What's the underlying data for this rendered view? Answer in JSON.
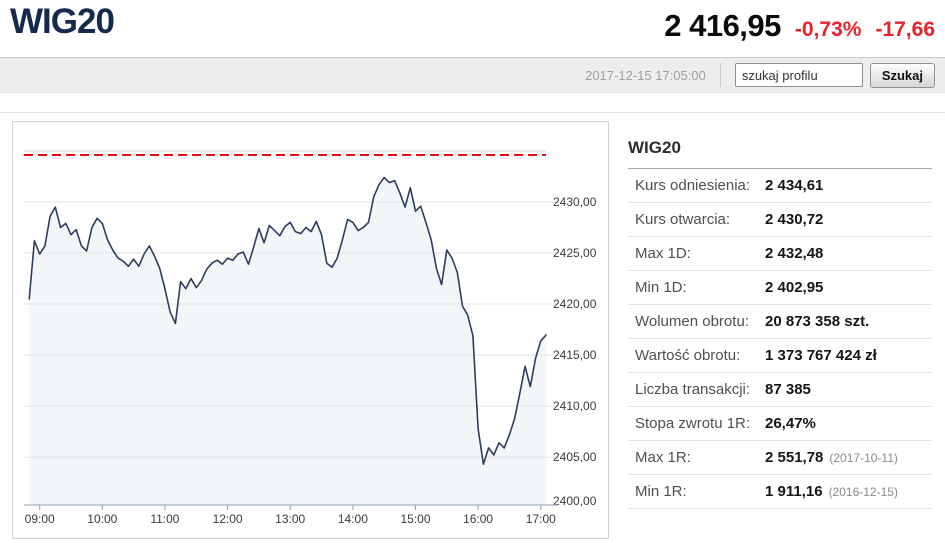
{
  "header": {
    "title": "WIG20",
    "price": "2 416,95",
    "change_pct": "-0,73%",
    "change_abs": "-17,66",
    "change_color": "#e8222a",
    "title_color": "#16284e"
  },
  "toolbar": {
    "timestamp": "2017-12-15 17:05:00",
    "search_placeholder": "szukaj profilu",
    "search_button": "Szukaj"
  },
  "panel": {
    "title": "WIG20",
    "rows": [
      {
        "label": "Kurs odniesienia:",
        "value": "2 434,61",
        "note": ""
      },
      {
        "label": "Kurs otwarcia:",
        "value": "2 430,72",
        "note": ""
      },
      {
        "label": "Max 1D:",
        "value": "2 432,48",
        "note": ""
      },
      {
        "label": "Min 1D:",
        "value": "2 402,95",
        "note": ""
      },
      {
        "label": "Wolumen obrotu:",
        "value": "20 873 358 szt.",
        "note": ""
      },
      {
        "label": "Wartość obrotu:",
        "value": "1 373 767 424 zł",
        "note": ""
      },
      {
        "label": "Liczba transakcji:",
        "value": "87 385",
        "note": ""
      },
      {
        "label": "Stopa zwrotu 1R:",
        "value": "26,47%",
        "note": ""
      },
      {
        "label": "Max 1R:",
        "value": "2 551,78",
        "note": "(2017-10-11)"
      },
      {
        "label": "Min 1R:",
        "value": "1 911,16",
        "note": "(2016-12-15)"
      }
    ]
  },
  "chart_data": {
    "type": "area",
    "title": "WIG20 intraday",
    "xlabel": "",
    "ylabel": "",
    "x_ticks": [
      "09:00",
      "10:00",
      "11:00",
      "12:00",
      "13:00",
      "14:00",
      "15:00",
      "16:00",
      "17:00"
    ],
    "y_ticks": [
      "2430,00",
      "2425,00",
      "2420,00",
      "2415,00",
      "2410,00",
      "2405,00",
      "2400,00"
    ],
    "ylim": [
      2400,
      2435
    ],
    "x_range": [
      "08:45",
      "17:05"
    ],
    "grid": "horizontal",
    "legend": "none",
    "reference_line": {
      "value": 2434.61,
      "color": "#e80c0c",
      "style": "dashed"
    },
    "line_color": "#2e3d5e",
    "fill_color": "#f3f6f9",
    "axis_color": "#93a0b2",
    "tick_text_color": "#3a3a3a",
    "series": [
      {
        "name": "WIG20",
        "times": [
          "08:50",
          "08:55",
          "09:00",
          "09:05",
          "09:10",
          "09:15",
          "09:20",
          "09:25",
          "09:30",
          "09:35",
          "09:40",
          "09:45",
          "09:50",
          "09:55",
          "10:00",
          "10:05",
          "10:10",
          "10:15",
          "10:20",
          "10:25",
          "10:30",
          "10:35",
          "10:40",
          "10:45",
          "10:50",
          "10:55",
          "11:00",
          "11:05",
          "11:10",
          "11:15",
          "11:20",
          "11:25",
          "11:30",
          "11:35",
          "11:40",
          "11:45",
          "11:50",
          "11:55",
          "12:00",
          "12:05",
          "12:10",
          "12:15",
          "12:20",
          "12:25",
          "12:30",
          "12:35",
          "12:40",
          "12:45",
          "12:50",
          "12:55",
          "13:00",
          "13:05",
          "13:10",
          "13:15",
          "13:20",
          "13:25",
          "13:30",
          "13:35",
          "13:40",
          "13:45",
          "13:50",
          "13:55",
          "14:00",
          "14:05",
          "14:10",
          "14:15",
          "14:20",
          "14:25",
          "14:30",
          "14:35",
          "14:40",
          "14:45",
          "14:50",
          "14:55",
          "15:00",
          "15:05",
          "15:10",
          "15:15",
          "15:20",
          "15:25",
          "15:30",
          "15:35",
          "15:40",
          "15:45",
          "15:50",
          "15:55",
          "16:00",
          "16:05",
          "16:10",
          "16:15",
          "16:20",
          "16:25",
          "16:30",
          "16:35",
          "16:40",
          "16:45",
          "16:50",
          "16:55",
          "17:00",
          "17:05"
        ],
        "values": [
          2420.5,
          2426.2,
          2424.9,
          2425.7,
          2428.6,
          2429.5,
          2427.5,
          2427.9,
          2426.8,
          2427.3,
          2425.7,
          2425.2,
          2427.5,
          2428.4,
          2427.9,
          2426.3,
          2425.3,
          2424.5,
          2424.2,
          2423.7,
          2424.4,
          2423.7,
          2424.9,
          2425.7,
          2424.7,
          2423.5,
          2421.5,
          2419.2,
          2418.1,
          2422.2,
          2421.5,
          2422.5,
          2421.6,
          2422.3,
          2423.4,
          2424.0,
          2424.3,
          2423.9,
          2424.5,
          2424.3,
          2424.9,
          2425.1,
          2423.9,
          2425.6,
          2427.4,
          2426.0,
          2427.7,
          2427.2,
          2426.7,
          2427.6,
          2428.0,
          2427.1,
          2426.9,
          2427.5,
          2427.1,
          2428.1,
          2426.8,
          2424.0,
          2423.6,
          2424.5,
          2426.3,
          2428.3,
          2428.0,
          2427.2,
          2427.5,
          2428.0,
          2430.5,
          2431.7,
          2432.4,
          2431.9,
          2432.1,
          2430.9,
          2429.5,
          2431.4,
          2429.1,
          2429.6,
          2428.0,
          2426.3,
          2423.5,
          2421.9,
          2425.3,
          2424.5,
          2423.1,
          2419.8,
          2418.9,
          2416.9,
          2407.8,
          2404.3,
          2405.9,
          2405.2,
          2406.4,
          2405.9,
          2407.2,
          2408.8,
          2411.3,
          2413.9,
          2411.9,
          2414.7,
          2416.4,
          2416.95
        ]
      }
    ]
  }
}
